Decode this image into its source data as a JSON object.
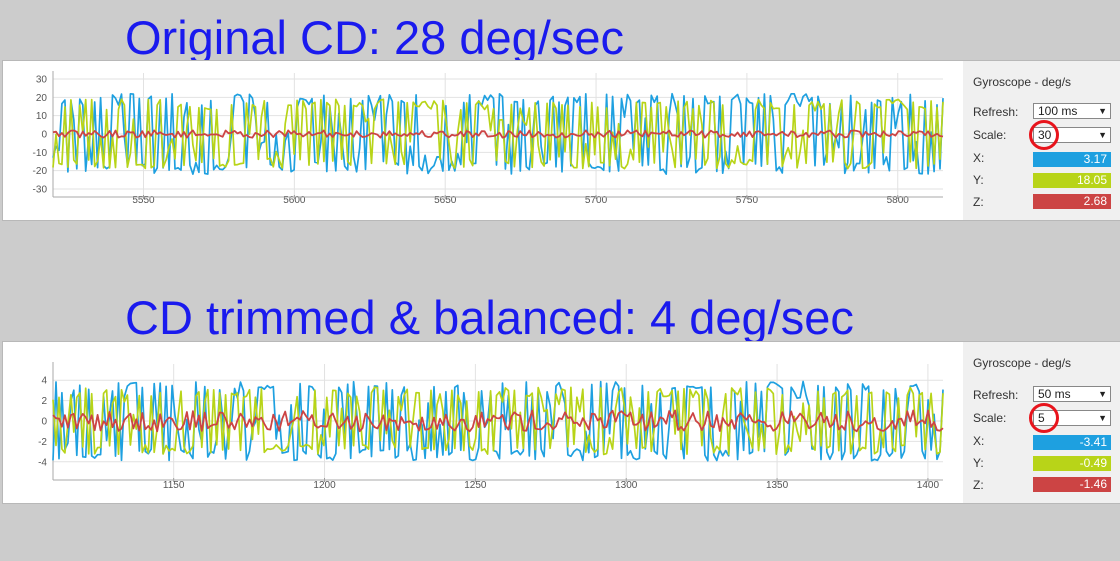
{
  "headings": {
    "top": "Original CD: 28 deg/sec",
    "bottom": "CD trimmed & balanced: 4 deg/sec"
  },
  "colors": {
    "x": "#1ea0e0",
    "y": "#b8d418",
    "z": "#cc4444",
    "heading": "#1a1aee"
  },
  "panels": [
    {
      "title": "Gyroscope - deg/s",
      "refresh_label": "Refresh:",
      "refresh_value": "100 ms",
      "scale_label": "Scale:",
      "scale_value": "30",
      "x_label": "X:",
      "x_value": "3.17",
      "y_label": "Y:",
      "y_value": "18.05",
      "z_label": "Z:",
      "z_value": "2.68"
    },
    {
      "title": "Gyroscope - deg/s",
      "refresh_label": "Refresh:",
      "refresh_value": "50 ms",
      "scale_label": "Scale:",
      "scale_value": "5",
      "x_label": "X:",
      "x_value": "-3.41",
      "y_label": "Y:",
      "y_value": "-0.49",
      "z_label": "Z:",
      "z_value": "-1.46"
    }
  ],
  "chart_data": [
    {
      "type": "line",
      "xlim": [
        5520,
        5815
      ],
      "ylim": [
        -30,
        30
      ],
      "xticks": [
        5550,
        5600,
        5650,
        5700,
        5750,
        5800
      ],
      "yticks": [
        30,
        20,
        10,
        0,
        -10,
        -20,
        -30
      ],
      "series": [
        {
          "key": "x",
          "amp": 22,
          "z": false
        },
        {
          "key": "y",
          "amp": 19,
          "z": false
        },
        {
          "key": "z",
          "amp": 2.5,
          "z": true
        }
      ]
    },
    {
      "type": "line",
      "xlim": [
        1110,
        1405
      ],
      "ylim": [
        -5,
        5
      ],
      "xticks": [
        1150,
        1200,
        1250,
        1300,
        1350,
        1400
      ],
      "yticks": [
        4,
        2,
        0,
        -2,
        -4
      ],
      "series": [
        {
          "key": "x",
          "amp": 3.9,
          "z": false
        },
        {
          "key": "y",
          "amp": 3.3,
          "z": false
        },
        {
          "key": "z",
          "amp": 1.3,
          "z": true
        }
      ]
    }
  ]
}
